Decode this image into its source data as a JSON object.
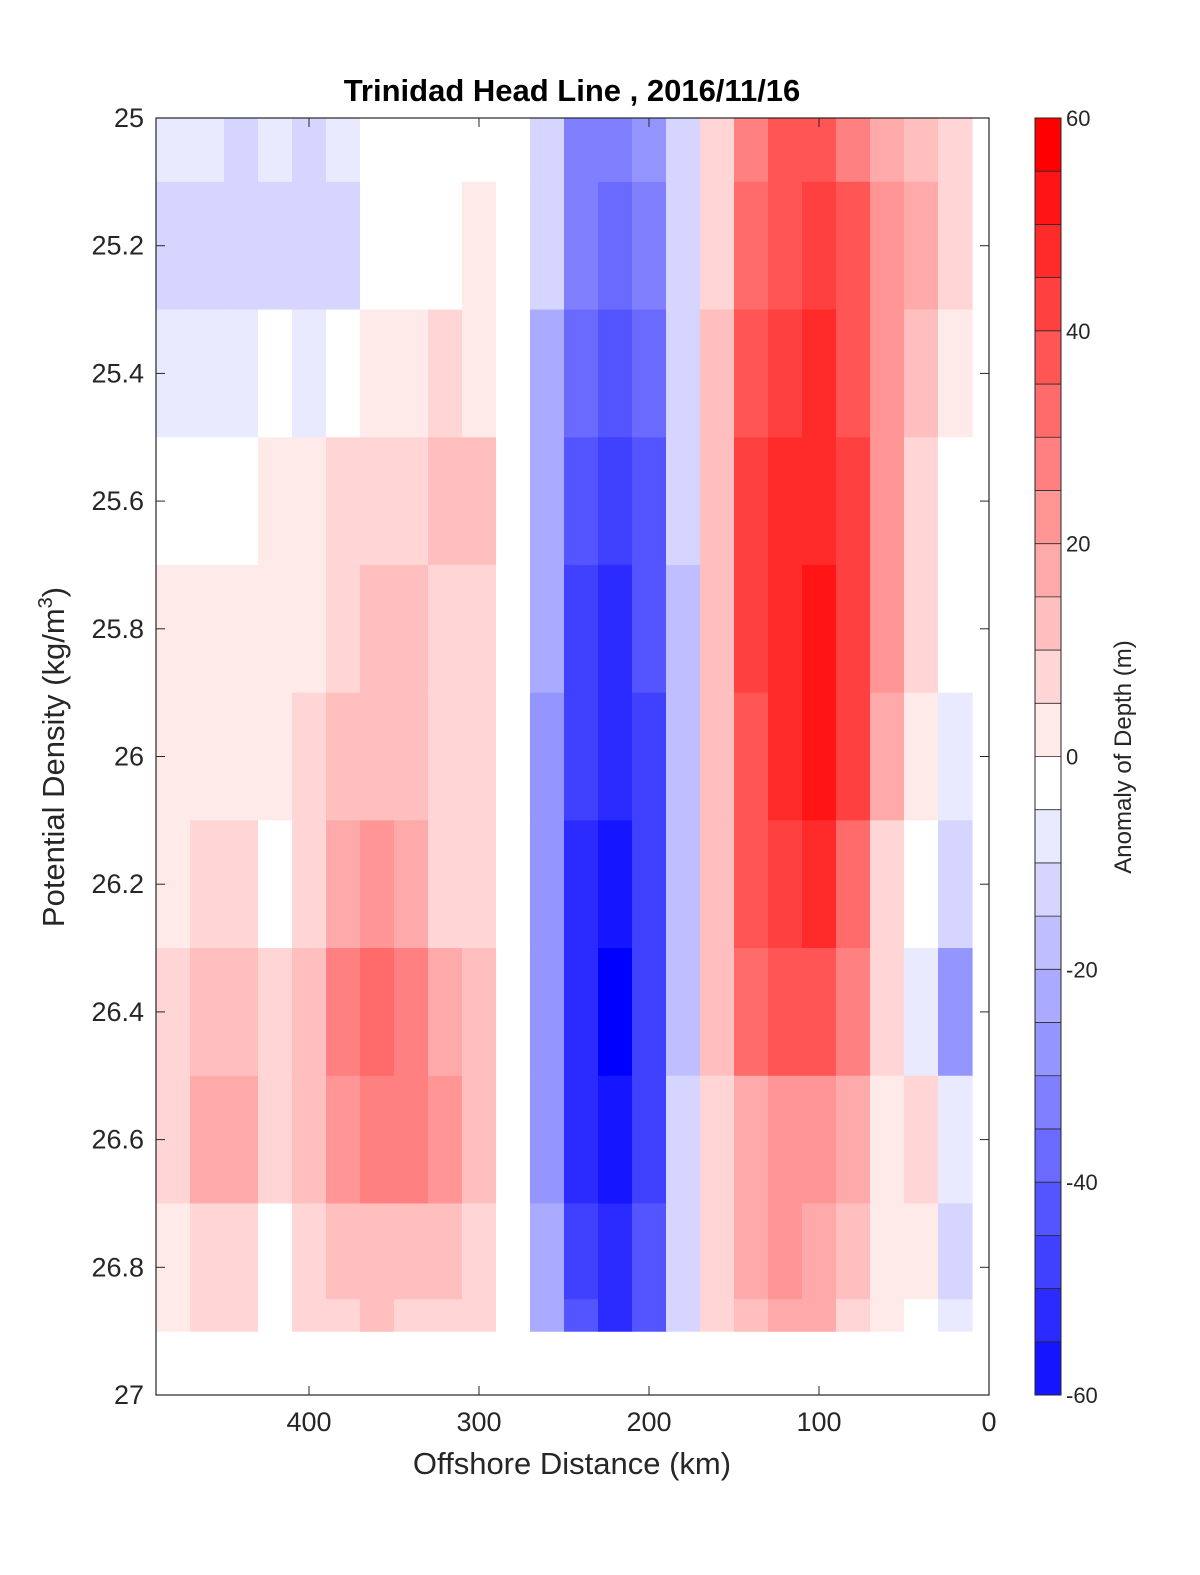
{
  "chart_data": {
    "type": "heatmap",
    "title": "Trinidad Head Line , 2016/11/16",
    "xlabel": "Offshore Distance (km)",
    "ylabel": "Potential Density (kg/m",
    "ylabel_superscript": "3",
    "ylabel_suffix": ")",
    "colorbar_label": "Anomaly of Depth (m)",
    "xlim": [
      490,
      0
    ],
    "ylim": [
      25,
      27
    ],
    "x_reversed": true,
    "y_reversed": true,
    "x_ticks": [
      400,
      300,
      200,
      100,
      0
    ],
    "y_ticks": [
      25,
      25.2,
      25.4,
      25.6,
      25.8,
      26,
      26.2,
      26.4,
      26.6,
      26.8,
      27
    ],
    "y_tick_labels": [
      "25",
      "25.2",
      "25.4",
      "25.6",
      "25.8",
      "26",
      "26.2",
      "26.4",
      "26.6",
      "26.8",
      "27"
    ],
    "colorbar_ticks": [
      60,
      40,
      20,
      0,
      -20,
      -40,
      -60
    ],
    "colorbar_range": [
      -60,
      60
    ],
    "colorbar_step": 5,
    "color_low": "#0000ff",
    "color_mid": "#ffffff",
    "color_high": "#ff0000",
    "data_y_max": 26.9,
    "x": [
      480,
      460,
      440,
      420,
      400,
      380,
      360,
      340,
      320,
      300,
      280,
      260,
      240,
      220,
      200,
      180,
      160,
      140,
      120,
      100,
      80,
      60,
      40,
      20
    ],
    "y": [
      25,
      25.2,
      25.4,
      25.6,
      25.8,
      26,
      26.2,
      26.4,
      26.6,
      26.8,
      26.9
    ],
    "z": [
      [
        -4,
        -6,
        -8,
        -7,
        -10,
        -6,
        -1,
        1,
        0,
        2,
        0,
        -10,
        -28,
        -32,
        -25,
        -8,
        10,
        30,
        38,
        40,
        32,
        20,
        15,
        10
      ],
      [
        -8,
        -10,
        -12,
        -8,
        -12,
        -8,
        -2,
        0,
        0,
        3,
        0,
        -12,
        -30,
        -36,
        -30,
        -10,
        12,
        35,
        42,
        45,
        38,
        25,
        18,
        12
      ],
      [
        -6,
        -6,
        -4,
        -2,
        -4,
        -2,
        3,
        5,
        8,
        7,
        1,
        -18,
        -36,
        -42,
        -35,
        -12,
        14,
        42,
        46,
        48,
        42,
        26,
        16,
        5
      ],
      [
        2,
        1,
        2,
        4,
        6,
        9,
        12,
        12,
        14,
        13,
        2,
        -20,
        -40,
        -46,
        -40,
        -12,
        16,
        44,
        48,
        52,
        45,
        24,
        12,
        2
      ],
      [
        6,
        4,
        5,
        4,
        6,
        12,
        16,
        14,
        12,
        12,
        2,
        -22,
        -44,
        -48,
        -42,
        -14,
        16,
        44,
        50,
        55,
        46,
        25,
        10,
        0
      ],
      [
        6,
        6,
        6,
        4,
        8,
        15,
        16,
        13,
        10,
        10,
        1,
        -24,
        -46,
        -52,
        -44,
        -14,
        16,
        42,
        50,
        56,
        44,
        20,
        5,
        -5
      ],
      [
        6,
        8,
        8,
        2,
        10,
        20,
        26,
        20,
        12,
        10,
        1,
        -26,
        -48,
        -56,
        -46,
        -14,
        14,
        40,
        46,
        48,
        36,
        12,
        0,
        -12
      ],
      [
        12,
        16,
        14,
        8,
        16,
        28,
        34,
        30,
        22,
        16,
        2,
        -26,
        -50,
        -58,
        -46,
        -14,
        14,
        36,
        40,
        38,
        28,
        8,
        -4,
        -24
      ],
      [
        10,
        18,
        20,
        8,
        16,
        26,
        30,
        28,
        24,
        16,
        2,
        -24,
        -50,
        -56,
        -44,
        -12,
        12,
        22,
        24,
        24,
        20,
        4,
        10,
        -6
      ],
      [
        5,
        12,
        10,
        2,
        8,
        14,
        16,
        16,
        14,
        10,
        1,
        -20,
        -44,
        -52,
        -40,
        -12,
        10,
        20,
        24,
        22,
        16,
        6,
        4,
        -8
      ],
      [
        4,
        10,
        8,
        0,
        8,
        12,
        14,
        12,
        10,
        8,
        1,
        -18,
        -40,
        -48,
        -38,
        -10,
        8,
        16,
        18,
        18,
        12,
        4,
        2,
        -6
      ]
    ]
  }
}
